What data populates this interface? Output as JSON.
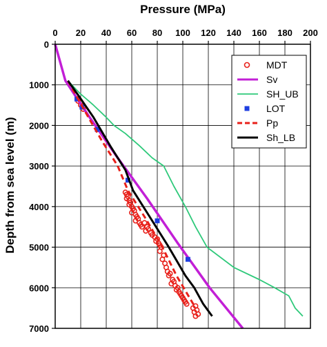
{
  "chart_data": {
    "type": "line",
    "xlabel": "Pressure (MPa)",
    "ylabel": "Depth from sea level (m)",
    "x_axis_position": "top",
    "y_axis_inverted": true,
    "xlim": [
      0,
      200
    ],
    "ylim": [
      0,
      7000
    ],
    "xticks": [
      0,
      20,
      40,
      60,
      80,
      100,
      120,
      140,
      160,
      180,
      200
    ],
    "yticks": [
      0,
      1000,
      2000,
      3000,
      4000,
      5000,
      6000,
      7000
    ],
    "grid": "vertical",
    "legend_position": "top-right",
    "series": [
      {
        "name": "MDT",
        "kind": "marker-open-circle",
        "color": "#e8201a",
        "points": [
          [
            18,
            1400
          ],
          [
            20,
            1500
          ],
          [
            22,
            1600
          ],
          [
            55,
            3650
          ],
          [
            56,
            3700
          ],
          [
            57,
            3750
          ],
          [
            56,
            3800
          ],
          [
            58,
            3850
          ],
          [
            59,
            3900
          ],
          [
            58,
            3950
          ],
          [
            60,
            4000
          ],
          [
            61,
            4050
          ],
          [
            62,
            4100
          ],
          [
            60,
            4150
          ],
          [
            63,
            4200
          ],
          [
            64,
            4250
          ],
          [
            65,
            4300
          ],
          [
            63,
            4350
          ],
          [
            66,
            4400
          ],
          [
            67,
            4450
          ],
          [
            68,
            4500
          ],
          [
            70,
            4400
          ],
          [
            71,
            4600
          ],
          [
            72,
            4500
          ],
          [
            73,
            4550
          ],
          [
            75,
            4650
          ],
          [
            76,
            4700
          ],
          [
            78,
            4750
          ],
          [
            80,
            4800
          ],
          [
            79,
            4850
          ],
          [
            81,
            4900
          ],
          [
            82,
            4950
          ],
          [
            83,
            5000
          ],
          [
            82,
            5100
          ],
          [
            85,
            5200
          ],
          [
            84,
            5300
          ],
          [
            86,
            5400
          ],
          [
            87,
            5500
          ],
          [
            88,
            5600
          ],
          [
            90,
            5650
          ],
          [
            89,
            5700
          ],
          [
            92,
            5800
          ],
          [
            93,
            5850
          ],
          [
            91,
            5900
          ],
          [
            94,
            5950
          ],
          [
            96,
            6000
          ],
          [
            95,
            6050
          ],
          [
            97,
            6100
          ],
          [
            98,
            6150
          ],
          [
            99,
            6200
          ],
          [
            100,
            6250
          ],
          [
            101,
            6300
          ],
          [
            102,
            6350
          ],
          [
            103,
            6400
          ],
          [
            110,
            6450
          ],
          [
            108,
            6500
          ],
          [
            111,
            6550
          ],
          [
            109,
            6600
          ],
          [
            112,
            6650
          ],
          [
            110,
            6700
          ]
        ]
      },
      {
        "name": "Sv",
        "kind": "line",
        "color": "#c21fd6",
        "points": [
          [
            0,
            0
          ],
          [
            8,
            900
          ],
          [
            27,
            1800
          ],
          [
            49,
            2800
          ],
          [
            72,
            3800
          ],
          [
            96,
            4900
          ],
          [
            121,
            6000
          ],
          [
            147,
            7000
          ]
        ]
      },
      {
        "name": "SH_UB",
        "kind": "line",
        "color": "#2ec97a",
        "points": [
          [
            10,
            900
          ],
          [
            19,
            1200
          ],
          [
            30,
            1500
          ],
          [
            40,
            1800
          ],
          [
            46,
            2000
          ],
          [
            55,
            2200
          ],
          [
            66,
            2500
          ],
          [
            76,
            2800
          ],
          [
            85,
            3000
          ],
          [
            93,
            3500
          ],
          [
            102,
            4000
          ],
          [
            110,
            4500
          ],
          [
            119,
            5000
          ],
          [
            140,
            5500
          ],
          [
            160,
            5800
          ],
          [
            172,
            6000
          ],
          [
            183,
            6200
          ],
          [
            188,
            6500
          ],
          [
            194,
            6700
          ]
        ]
      },
      {
        "name": "LOT",
        "kind": "marker-filled-square",
        "color": "#1f3fe0",
        "points": [
          [
            17,
            1350
          ],
          [
            21,
            1550
          ],
          [
            33,
            2100
          ],
          [
            57,
            3350
          ],
          [
            80,
            4350
          ],
          [
            104,
            5300
          ]
        ]
      },
      {
        "name": "Pp",
        "kind": "dashed-line",
        "color": "#e8201a",
        "points": [
          [
            10,
            900
          ],
          [
            17,
            1300
          ],
          [
            26,
            1800
          ],
          [
            37,
            2400
          ],
          [
            49,
            3000
          ],
          [
            57,
            3600
          ],
          [
            71,
            4300
          ],
          [
            84,
            5000
          ],
          [
            95,
            5700
          ],
          [
            110,
            6500
          ]
        ]
      },
      {
        "name": "Sh_LB",
        "kind": "line",
        "color": "#000000",
        "points": [
          [
            10,
            900
          ],
          [
            19,
            1300
          ],
          [
            30,
            1800
          ],
          [
            43,
            2500
          ],
          [
            55,
            3100
          ],
          [
            61,
            3600
          ],
          [
            75,
            4300
          ],
          [
            89,
            5000
          ],
          [
            102,
            5700
          ],
          [
            109,
            6000
          ],
          [
            116,
            6400
          ],
          [
            123,
            6700
          ]
        ]
      }
    ]
  }
}
